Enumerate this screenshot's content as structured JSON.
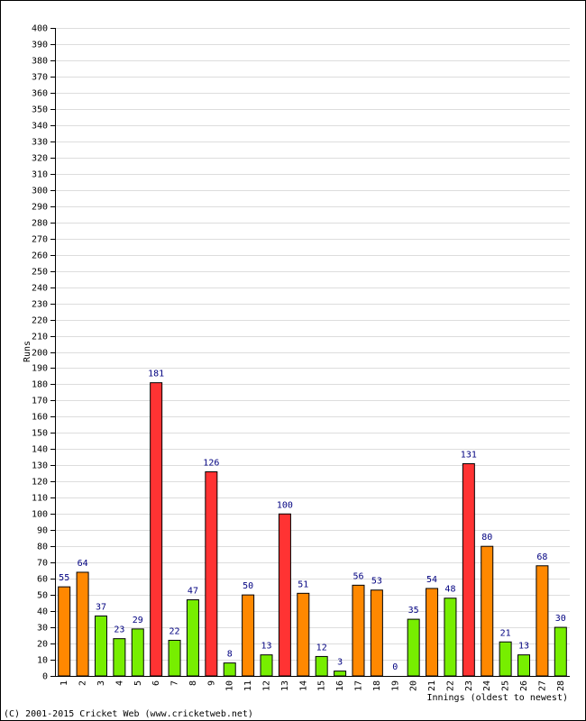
{
  "chart_data": {
    "type": "bar",
    "x_label": "Innings (oldest to newest)",
    "y_label": "Runs",
    "footer": "(C) 2001-2015 Cricket Web (www.cricketweb.net)",
    "categories": [
      "1",
      "2",
      "3",
      "4",
      "5",
      "6",
      "7",
      "8",
      "9",
      "10",
      "11",
      "12",
      "13",
      "14",
      "15",
      "16",
      "17",
      "18",
      "19",
      "20",
      "21",
      "22",
      "23",
      "24",
      "25",
      "26",
      "27",
      "28"
    ],
    "values": [
      55,
      64,
      37,
      23,
      29,
      181,
      22,
      47,
      126,
      8,
      50,
      13,
      100,
      51,
      12,
      3,
      56,
      53,
      0,
      35,
      54,
      48,
      131,
      80,
      21,
      13,
      68,
      30
    ],
    "colors": [
      "#ff8800",
      "#ff8800",
      "#77ee00",
      "#77ee00",
      "#77ee00",
      "#ff3333",
      "#77ee00",
      "#77ee00",
      "#ff3333",
      "#77ee00",
      "#ff8800",
      "#77ee00",
      "#ff3333",
      "#ff8800",
      "#77ee00",
      "#77ee00",
      "#ff8800",
      "#ff8800",
      "#77ee00",
      "#77ee00",
      "#ff8800",
      "#77ee00",
      "#ff3333",
      "#ff8800",
      "#77ee00",
      "#77ee00",
      "#ff8800",
      "#77ee00"
    ],
    "ylim": [
      0,
      400
    ],
    "yticks": [
      0,
      10,
      20,
      30,
      40,
      50,
      60,
      70,
      80,
      90,
      100,
      110,
      120,
      130,
      140,
      150,
      160,
      170,
      180,
      190,
      200,
      210,
      220,
      230,
      240,
      250,
      260,
      270,
      280,
      290,
      300,
      310,
      320,
      330,
      340,
      350,
      360,
      370,
      380,
      390,
      400
    ],
    "grid": true
  }
}
